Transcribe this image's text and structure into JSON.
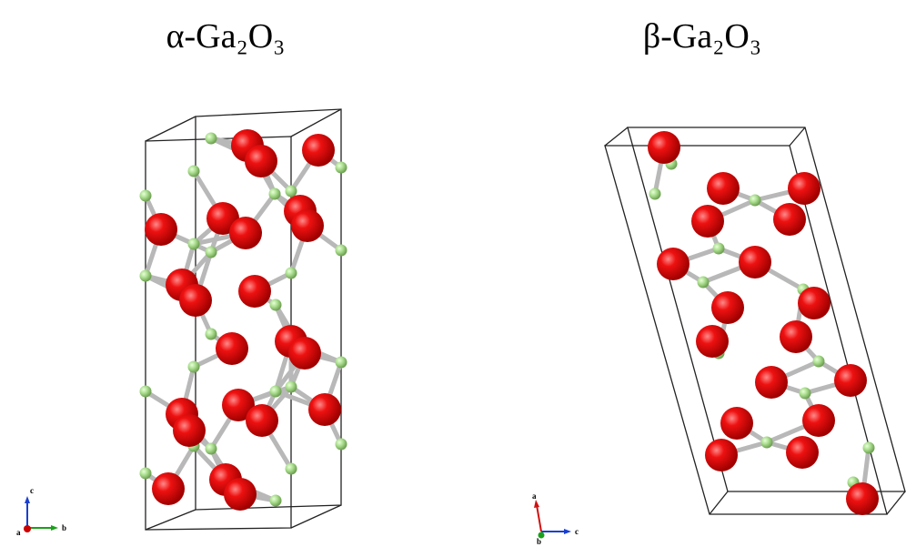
{
  "panels": [
    {
      "title": "α-Ga₂O₃",
      "axes": {
        "vertical": "c",
        "horizontal": "b",
        "depth": "a"
      }
    },
    {
      "title": "β-Ga₂O₃",
      "axes": {
        "vertical": "a",
        "horizontal": "c",
        "depth": "b"
      }
    }
  ]
}
